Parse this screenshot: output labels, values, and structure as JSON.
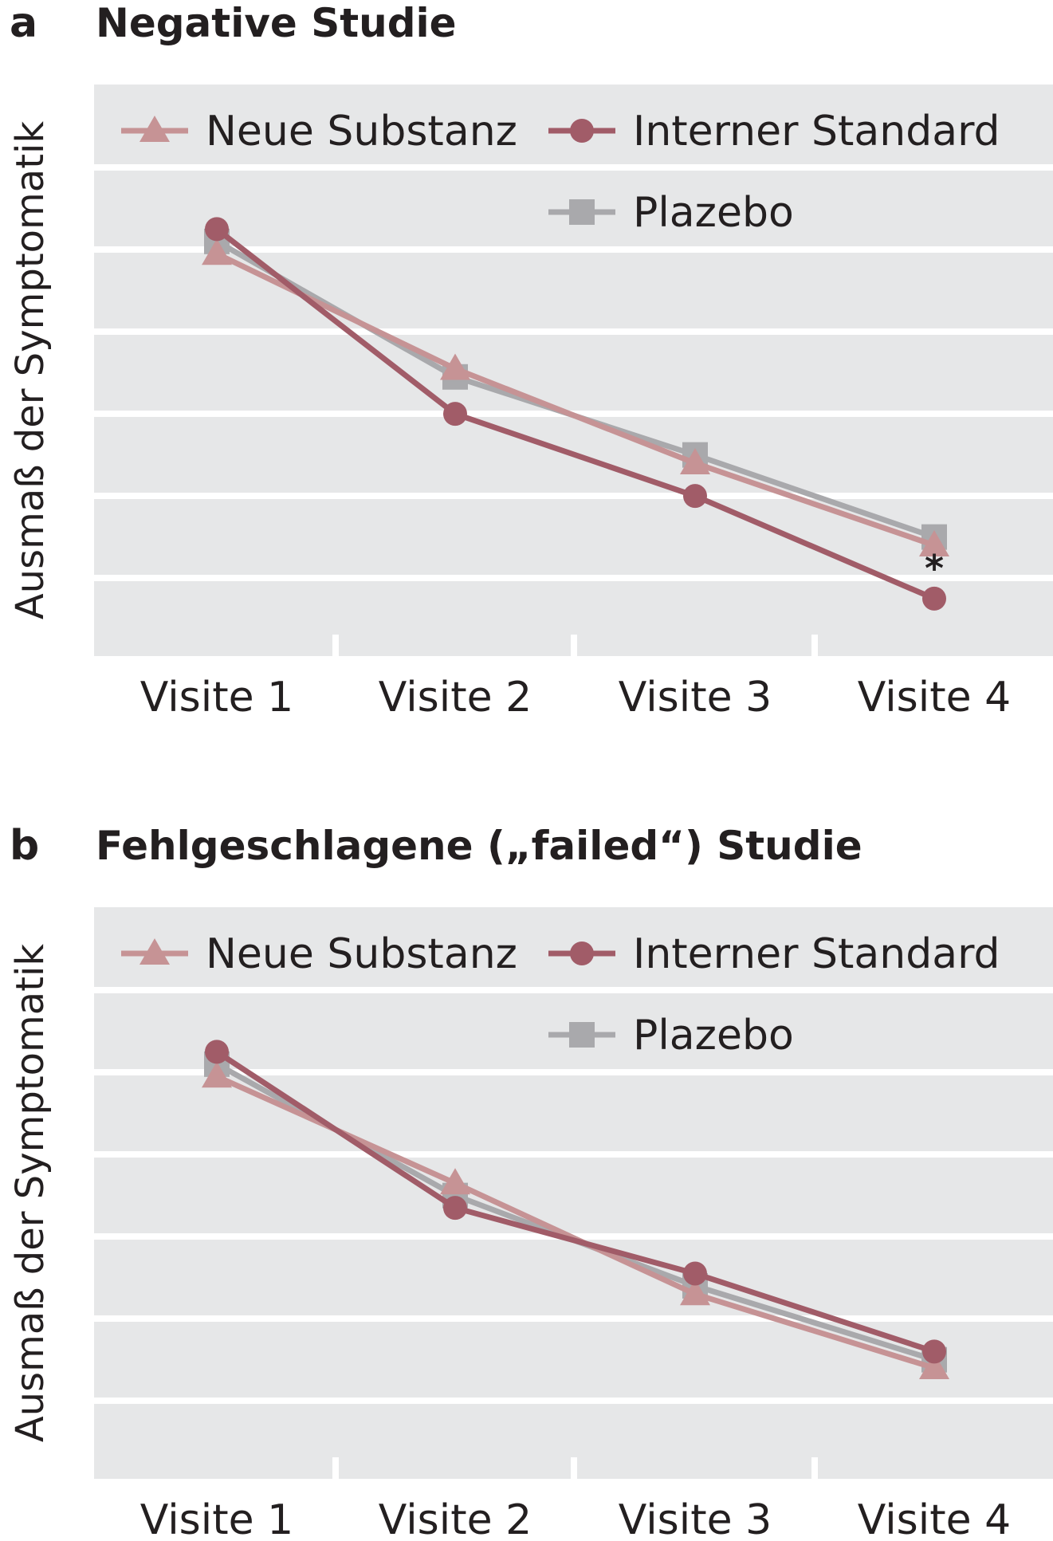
{
  "chart_data": [
    {
      "panel_letter": "a",
      "type": "line",
      "title": "Negative Studie",
      "xlabel": "",
      "ylabel": "Ausmaß der Symptomatik",
      "categories": [
        "Visite 1",
        "Visite 2",
        "Visite 3",
        "Visite 4"
      ],
      "ylim": [
        0,
        7
      ],
      "grid": true,
      "legend_position": "top",
      "series": [
        {
          "name": "Neue Substanz",
          "marker": "triangle",
          "color": "#c69395",
          "values": [
            4.9,
            3.5,
            2.35,
            1.35
          ]
        },
        {
          "name": "Interner Standard",
          "marker": "circle",
          "color": "#a15c68",
          "values": [
            5.2,
            2.95,
            1.95,
            0.7
          ]
        },
        {
          "name": "Plazebo",
          "marker": "square",
          "color": "#a9a9ac",
          "values": [
            5.05,
            3.4,
            2.45,
            1.45
          ]
        }
      ],
      "annotations": [
        {
          "text": "*",
          "series": "Interner Standard",
          "category": "Visite 4"
        }
      ]
    },
    {
      "panel_letter": "b",
      "type": "line",
      "title": "Fehlgeschlagene („failed“) Studie",
      "xlabel": "",
      "ylabel": "Ausmaß der Symptomatik",
      "categories": [
        "Visite 1",
        "Visite 2",
        "Visite 3",
        "Visite 4"
      ],
      "ylim": [
        0,
        7
      ],
      "grid": true,
      "legend_position": "top",
      "series": [
        {
          "name": "Neue Substanz",
          "marker": "triangle",
          "color": "#c69395",
          "values": [
            4.9,
            3.6,
            2.25,
            1.35
          ]
        },
        {
          "name": "Interner Standard",
          "marker": "circle",
          "color": "#a15c68",
          "values": [
            5.2,
            3.3,
            2.5,
            1.55
          ]
        },
        {
          "name": "Plazebo",
          "marker": "square",
          "color": "#a9a9ac",
          "values": [
            5.05,
            3.45,
            2.35,
            1.45
          ]
        }
      ],
      "annotations": []
    }
  ]
}
